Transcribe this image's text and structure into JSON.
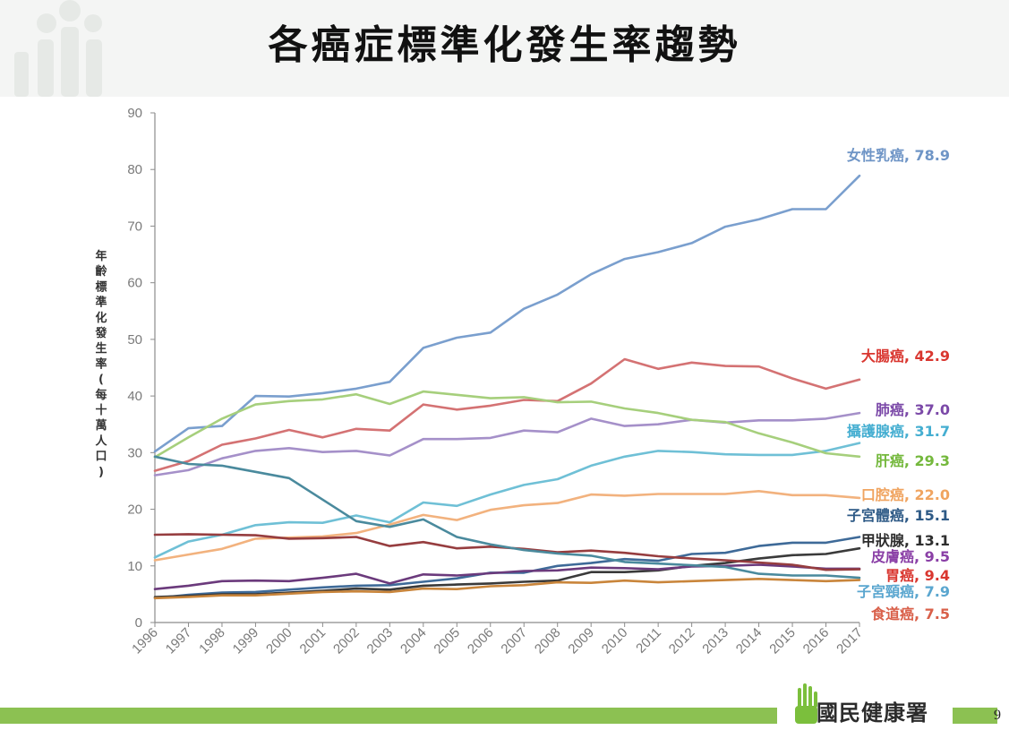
{
  "title": "各癌症標準化發生率趨勢",
  "org_name": "國民健康署",
  "page_number": "9",
  "chart_data": {
    "type": "line",
    "ylabel": "年齡標準化發生率(每十萬人口)",
    "xlabel": "",
    "ylim": [
      0,
      90
    ],
    "yticks": [
      0,
      10,
      20,
      30,
      40,
      50,
      60,
      70,
      80,
      90
    ],
    "grid": false,
    "x": [
      "1996",
      "1997",
      "1998",
      "1999",
      "2000",
      "2001",
      "2002",
      "2003",
      "2004",
      "2005",
      "2006",
      "2007",
      "2008",
      "2009",
      "2010",
      "2011",
      "2012",
      "2013",
      "2014",
      "2015",
      "2016",
      "2017"
    ],
    "series": [
      {
        "name": "女性乳癌",
        "end_value": "78.9",
        "color": "#7a9fce",
        "values": [
          30.2,
          34.3,
          34.7,
          40.0,
          39.9,
          40.5,
          41.3,
          42.5,
          48.5,
          50.3,
          51.2,
          55.4,
          57.9,
          61.5,
          64.2,
          65.4,
          67.0,
          69.9,
          71.2,
          73.0,
          73.0,
          78.9
        ]
      },
      {
        "name": "大腸癌",
        "end_value": "42.9",
        "color": "#d47273",
        "values": [
          26.8,
          28.5,
          31.4,
          32.5,
          34.0,
          32.7,
          34.2,
          33.9,
          38.5,
          37.6,
          38.3,
          39.3,
          39.1,
          42.2,
          46.5,
          44.8,
          45.9,
          45.3,
          45.2,
          43.1,
          41.3,
          42.9
        ]
      },
      {
        "name": "肺癌",
        "end_value": "37.0",
        "color": "#a590c9",
        "values": [
          26.0,
          26.9,
          29.0,
          30.3,
          30.8,
          30.1,
          30.3,
          29.5,
          32.4,
          32.4,
          32.6,
          33.9,
          33.6,
          36.0,
          34.7,
          35.0,
          35.8,
          35.3,
          35.7,
          35.7,
          36.0,
          37.0
        ]
      },
      {
        "name": "攝護腺癌",
        "end_value": "31.7",
        "color": "#6fc0d6",
        "values": [
          11.5,
          14.3,
          15.5,
          17.2,
          17.7,
          17.6,
          18.9,
          17.7,
          21.2,
          20.6,
          22.6,
          24.3,
          25.3,
          27.7,
          29.3,
          30.3,
          30.1,
          29.7,
          29.6,
          29.6,
          30.3,
          31.7
        ]
      },
      {
        "name": "肝癌",
        "end_value": "29.3",
        "color": "#a6cf7c",
        "values": [
          29.2,
          32.7,
          36.0,
          38.5,
          39.1,
          39.4,
          40.3,
          38.6,
          40.8,
          40.2,
          39.6,
          39.8,
          38.9,
          39.0,
          37.8,
          37.0,
          35.8,
          35.4,
          33.4,
          31.8,
          29.9,
          29.3
        ]
      },
      {
        "name": "口腔癌",
        "end_value": "22.0",
        "color": "#f2b27e",
        "values": [
          11.0,
          12.0,
          13.0,
          14.8,
          15.0,
          15.2,
          15.8,
          17.3,
          19.0,
          18.1,
          19.9,
          20.7,
          21.1,
          22.6,
          22.4,
          22.7,
          22.7,
          22.7,
          23.2,
          22.5,
          22.5,
          22.0
        ]
      },
      {
        "name": "子宮體癌",
        "end_value": "15.1",
        "color": "#3e6a98",
        "values": [
          4.3,
          4.9,
          5.3,
          5.4,
          5.8,
          6.2,
          6.5,
          6.6,
          7.2,
          7.8,
          8.8,
          8.8,
          10.0,
          10.5,
          11.2,
          10.9,
          12.1,
          12.3,
          13.5,
          14.1,
          14.1,
          15.1
        ]
      },
      {
        "name": "甲狀腺",
        "end_value": "13.1",
        "color": "#3a3a3a",
        "values": [
          4.5,
          4.7,
          5.0,
          5.0,
          5.3,
          5.6,
          6.0,
          5.8,
          6.5,
          6.7,
          6.9,
          7.2,
          7.4,
          8.9,
          8.9,
          9.2,
          10.0,
          10.5,
          11.3,
          11.9,
          12.1,
          13.1
        ]
      },
      {
        "name": "皮膚癌",
        "end_value": "9.5",
        "color": "#6b3a7c",
        "values": [
          5.9,
          6.5,
          7.3,
          7.4,
          7.3,
          7.9,
          8.6,
          6.9,
          8.5,
          8.3,
          8.7,
          9.1,
          9.2,
          9.7,
          9.6,
          9.4,
          9.9,
          10.0,
          10.2,
          9.9,
          9.5,
          9.5
        ]
      },
      {
        "name": "胃癌",
        "end_value": "9.4",
        "color": "#963d3f",
        "values": [
          15.5,
          15.6,
          15.5,
          15.4,
          14.8,
          14.9,
          15.1,
          13.5,
          14.2,
          13.1,
          13.4,
          13.0,
          12.4,
          12.7,
          12.3,
          11.7,
          11.3,
          11.0,
          10.6,
          10.2,
          9.3,
          9.4
        ]
      },
      {
        "name": "子宮頸癌",
        "end_value": "7.9",
        "color": "#4a8a9d",
        "values": [
          29.3,
          28.0,
          27.7,
          26.6,
          25.5,
          21.7,
          17.9,
          16.9,
          18.2,
          15.1,
          13.8,
          12.8,
          12.2,
          11.8,
          10.7,
          10.4,
          10.1,
          9.8,
          8.6,
          8.3,
          8.3,
          7.9
        ]
      },
      {
        "name": "食道癌",
        "end_value": "7.5",
        "color": "#c9853b",
        "values": [
          4.3,
          4.5,
          4.8,
          4.8,
          5.1,
          5.4,
          5.5,
          5.4,
          6.0,
          5.9,
          6.4,
          6.6,
          7.1,
          7.0,
          7.4,
          7.1,
          7.3,
          7.5,
          7.7,
          7.5,
          7.3,
          7.5
        ]
      }
    ],
    "labels": [
      {
        "text": "女性乳癌, 78.9",
        "color": "#6f95c6",
        "series": "女性乳癌"
      },
      {
        "text": "大腸癌, 42.9",
        "color": "#d9362f",
        "series": "大腸癌"
      },
      {
        "text": "肺癌, 37.0",
        "color": "#7b49a8",
        "series": "肺癌"
      },
      {
        "text": "攝護腺癌, 31.7",
        "color": "#45aed1",
        "series": "攝護腺癌"
      },
      {
        "text": "肝癌, 29.3",
        "color": "#74b83c",
        "series": "肝癌"
      },
      {
        "text": "口腔癌, 22.0",
        "color": "#f0a460",
        "series": "口腔癌"
      },
      {
        "text": "子宮體癌, 15.1",
        "color": "#2e5a86",
        "series": "子宮體癌"
      },
      {
        "text": "甲狀腺, 13.1",
        "color": "#2e2e2e",
        "series": "甲狀腺"
      },
      {
        "text": "皮膚癌, 9.5",
        "color": "#8a3fa6",
        "series": "皮膚癌"
      },
      {
        "text": "胃癌, 9.4",
        "color": "#d9362f",
        "series": "胃癌"
      },
      {
        "text": "子宮頸癌, 7.9",
        "color": "#5aa6cf",
        "series": "子宮頸癌"
      },
      {
        "text": "食道癌, 7.5",
        "color": "#d9604a",
        "series": "食道癌"
      }
    ]
  }
}
